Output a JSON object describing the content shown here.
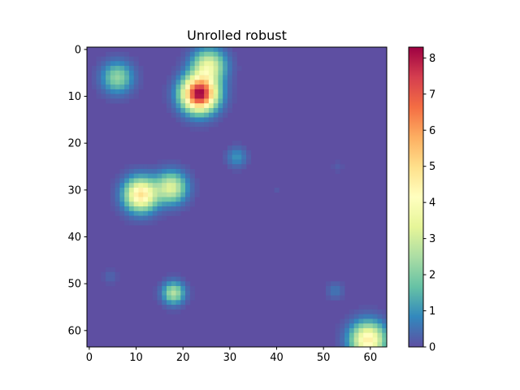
{
  "chart_data": {
    "type": "heatmap",
    "title": "Unrolled robust",
    "xlabel": "",
    "ylabel": "",
    "grid_size": [
      64,
      64
    ],
    "xlim": [
      -0.5,
      63.5
    ],
    "ylim": [
      63.5,
      -0.5
    ],
    "x_ticks": [
      0,
      10,
      20,
      30,
      40,
      50,
      60
    ],
    "y_ticks": [
      0,
      10,
      20,
      30,
      40,
      50,
      60
    ],
    "colormap": "Spectral_r",
    "colorbar": {
      "min": 0,
      "max": 8.3,
      "ticks": [
        0,
        1,
        2,
        3,
        4,
        5,
        6,
        7,
        8
      ]
    },
    "grid": false,
    "background_value": 0,
    "blobs": [
      {
        "row": 9.5,
        "col": 23.5,
        "peak": 8.3,
        "radius": 3.2
      },
      {
        "row": 3.5,
        "col": 25.5,
        "peak": 3.4,
        "radius": 3.0
      },
      {
        "row": 6,
        "col": 6,
        "peak": 2.2,
        "radius": 2.8
      },
      {
        "row": 31,
        "col": 11,
        "peak": 4.9,
        "radius": 3.0
      },
      {
        "row": 29.5,
        "col": 17.5,
        "peak": 3.2,
        "radius": 2.8
      },
      {
        "row": 23,
        "col": 31.5,
        "peak": 1.0,
        "radius": 1.8
      },
      {
        "row": 52,
        "col": 18,
        "peak": 2.6,
        "radius": 2.0
      },
      {
        "row": 62,
        "col": 59.5,
        "peak": 4.6,
        "radius": 3.2
      },
      {
        "row": 51.5,
        "col": 52.5,
        "peak": 0.6,
        "radius": 1.5
      },
      {
        "row": 48.5,
        "col": 4.5,
        "peak": 0.35,
        "radius": 1.2
      },
      {
        "row": 25,
        "col": 53,
        "peak": 0.2,
        "radius": 1.0
      },
      {
        "row": 30,
        "col": 40,
        "peak": 0.15,
        "radius": 1.0
      }
    ]
  }
}
